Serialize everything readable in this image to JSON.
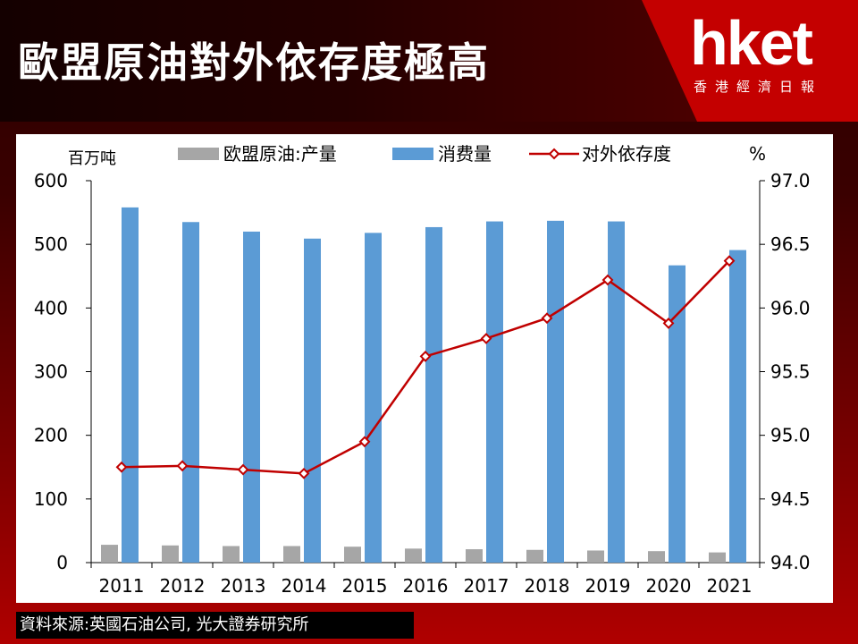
{
  "header": {
    "title": "歐盟原油對外依存度極高",
    "logo_text": "hket",
    "logo_sub": "香港經濟日報"
  },
  "source": "資料來源:英國石油公司, 光大證券研究所",
  "chart_data": {
    "type": "bar",
    "categories": [
      "2011",
      "2012",
      "2013",
      "2014",
      "2015",
      "2016",
      "2017",
      "2018",
      "2019",
      "2020",
      "2021"
    ],
    "left_axis": {
      "unit": "百万吨",
      "ylim": [
        0,
        600
      ],
      "ticks": [
        "0",
        "100",
        "200",
        "300",
        "400",
        "500",
        "600"
      ]
    },
    "right_axis": {
      "unit": "%",
      "ylim": [
        94.0,
        97.0
      ],
      "ticks": [
        "94.0",
        "94.5",
        "95.0",
        "95.5",
        "96.0",
        "96.5",
        "97.0"
      ]
    },
    "series": [
      {
        "name": "欧盟原油:产量",
        "type": "bar",
        "axis": "left",
        "color": "#a6a6a6",
        "values": [
          28,
          27,
          26,
          26,
          25,
          22,
          21,
          20,
          19,
          18,
          16
        ]
      },
      {
        "name": "消费量",
        "type": "bar",
        "axis": "left",
        "color": "#5b9bd5",
        "values": [
          558,
          535,
          520,
          509,
          518,
          527,
          536,
          537,
          536,
          467,
          491
        ]
      },
      {
        "name": "对外依存度",
        "type": "line",
        "axis": "right",
        "color": "#c00000",
        "values": [
          94.75,
          94.76,
          94.73,
          94.7,
          94.95,
          95.62,
          95.76,
          95.92,
          96.22,
          95.88,
          96.37
        ]
      }
    ],
    "grid": false,
    "legend_position": "top"
  },
  "colors": {
    "accent": "#c00000",
    "bar_production": "#a6a6a6",
    "bar_consumption": "#5b9bd5"
  }
}
